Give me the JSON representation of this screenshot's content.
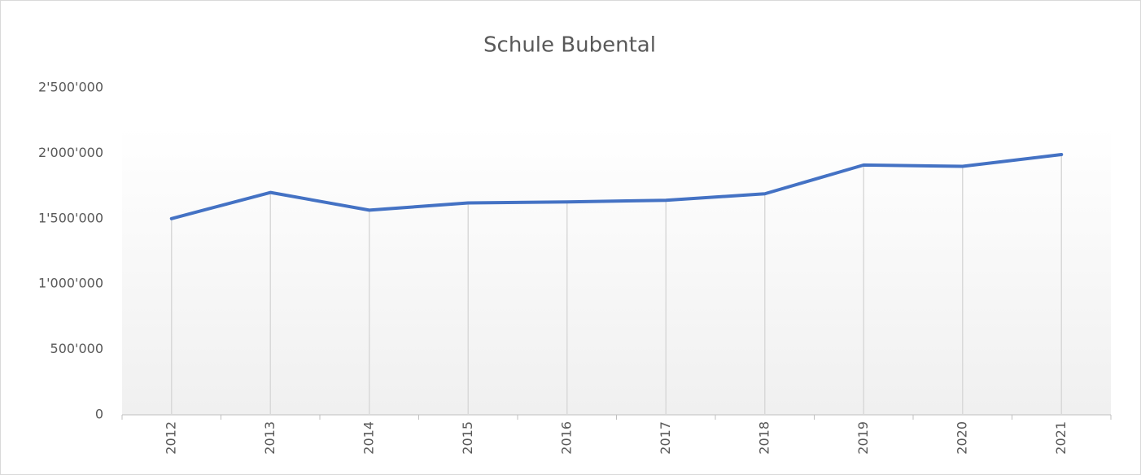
{
  "chart_data": {
    "type": "line",
    "title": "Schule Bubental",
    "categories": [
      "2012",
      "2013",
      "2014",
      "2015",
      "2016",
      "2017",
      "2018",
      "2019",
      "2020",
      "2021"
    ],
    "series": [
      {
        "color": "#4472c4",
        "values": [
          1500000,
          1700000,
          1565000,
          1620000,
          1628000,
          1640000,
          1690000,
          1910000,
          1900000,
          1990000
        ]
      }
    ],
    "ylim": [
      0,
      2500000
    ],
    "yticks": [
      {
        "value": 0,
        "label": "0"
      },
      {
        "value": 500000,
        "label": "500'000"
      },
      {
        "value": 1000000,
        "label": "1'000'000"
      },
      {
        "value": 1500000,
        "label": "1'500'000"
      },
      {
        "value": 2000000,
        "label": "2'000'000"
      },
      {
        "value": 2500000,
        "label": "2'500'000"
      }
    ],
    "drop_lines": true
  }
}
